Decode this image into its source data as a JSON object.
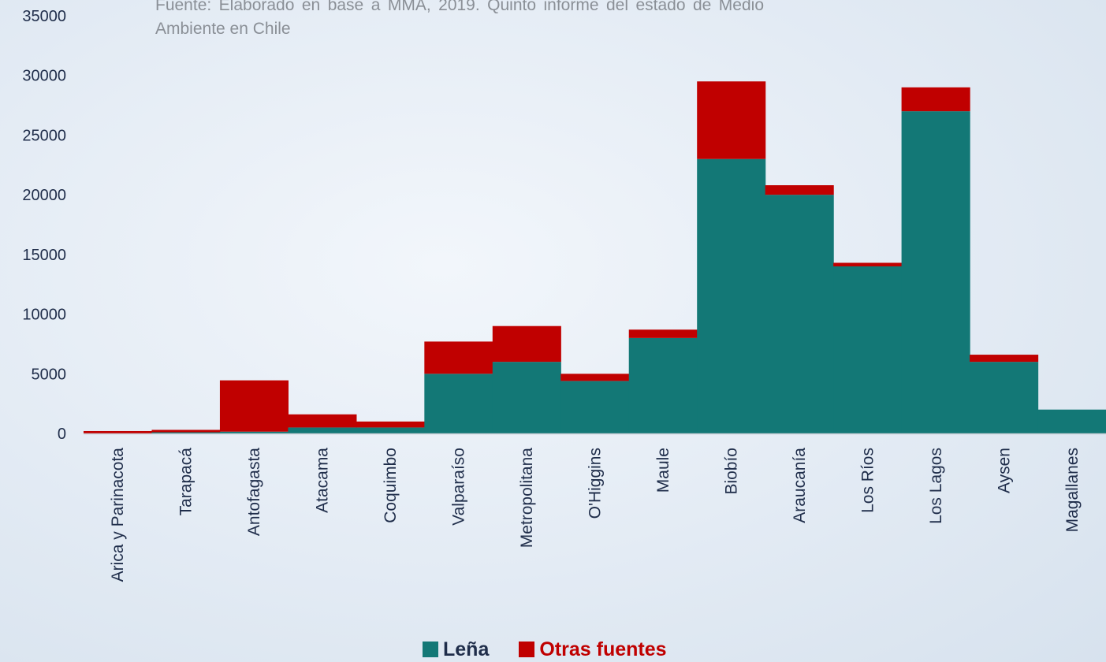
{
  "source_note": "Fuente: Elaborado en base a MMA, 2019. Quinto informe del estado de Medio Ambiente en Chile",
  "colors": {
    "lena": "#137876",
    "otras": "#c00000"
  },
  "legend": [
    {
      "label": "Leña",
      "color": "#137876",
      "text_color": "#1f2d4a"
    },
    {
      "label": "Otras fuentes",
      "color": "#c00000",
      "text_color": "#c00000"
    }
  ],
  "chart_data": {
    "type": "bar",
    "stacked": true,
    "categories": [
      "Arica y Parinacota",
      "Tarapacá",
      "Antofagasta",
      "Atacama",
      "Coquimbo",
      "Valparaíso",
      "Metropolitana",
      "O'Higgins",
      "Maule",
      "Biobío",
      "Araucanía",
      "Los Ríos",
      "Los Lagos",
      "Aysen",
      "Magallanes"
    ],
    "series": [
      {
        "name": "Leña",
        "values": [
          0,
          100,
          150,
          500,
          500,
          5000,
          6000,
          4400,
          8000,
          23000,
          20000,
          14000,
          27000,
          6000,
          2000
        ]
      },
      {
        "name": "Otras fuentes",
        "values": [
          200,
          200,
          4300,
          1100,
          500,
          2700,
          3000,
          600,
          700,
          6500,
          800,
          300,
          2000,
          600,
          0
        ]
      }
    ],
    "ylim": [
      0,
      35000
    ],
    "yticks": [
      "0",
      "5000",
      "10000",
      "15000",
      "20000",
      "25000",
      "30000",
      "35000"
    ],
    "grid": false,
    "legend_position": "bottom"
  }
}
